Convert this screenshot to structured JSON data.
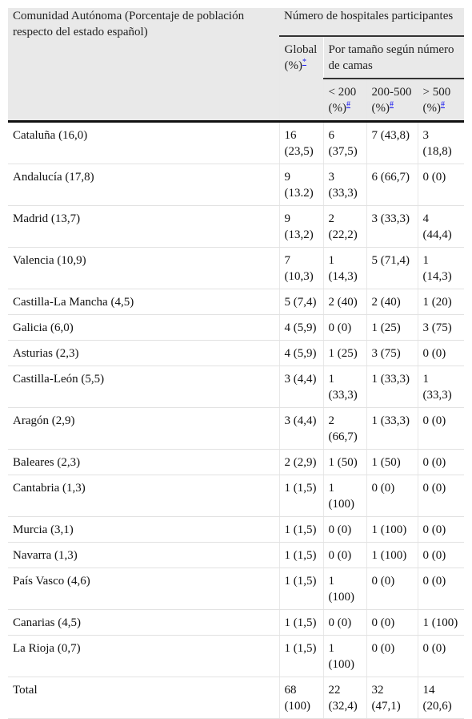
{
  "table": {
    "header": {
      "region": "Comunidad Autónoma (Porcentaje de población respecto del estado español)",
      "group": "Número de hospitales participantes",
      "global": {
        "label": "Global (%)",
        "note": "*"
      },
      "size_group": "Por tamaño según número de camas",
      "sizes": [
        {
          "label": "< 200 (%)",
          "note": "#"
        },
        {
          "label": "200-500 (%)",
          "note": "#"
        },
        {
          "label": "> 500 (%)",
          "note": "#"
        }
      ]
    },
    "rows": [
      [
        "Cataluña (16,0)",
        "16 (23,5)",
        "6 (37,5)",
        "7 (43,8)",
        "3 (18,8)"
      ],
      [
        "Andalucía (17,8)",
        "9 (13.2)",
        "3 (33,3)",
        "6 (66,7)",
        "0 (0)"
      ],
      [
        "Madrid (13,7)",
        "9 (13,2)",
        "2 (22,2)",
        "3 (33,3)",
        "4 (44,4)"
      ],
      [
        "Valencia (10,9)",
        "7 (10,3)",
        "1 (14,3)",
        "5 (71,4)",
        "1 (14,3)"
      ],
      [
        "Castilla-La Mancha (4,5)",
        "5 (7,4)",
        "2 (40)",
        "2 (40)",
        "1 (20)"
      ],
      [
        "Galicia (6,0)",
        "4 (5,9)",
        "0 (0)",
        "1 (25)",
        "3 (75)"
      ],
      [
        "Asturias (2,3)",
        "4 (5,9)",
        "1 (25)",
        "3 (75)",
        "0 (0)"
      ],
      [
        "Castilla-León (5,5)",
        "3 (4,4)",
        "1 (33,3)",
        "1 (33,3)",
        "1 (33,3)"
      ],
      [
        "Aragón (2,9)",
        "3 (4,4)",
        "2 (66,7)",
        "1 (33,3)",
        "0 (0)"
      ],
      [
        "Baleares (2,3)",
        "2 (2,9)",
        "1 (50)",
        "1 (50)",
        "0 (0)"
      ],
      [
        "Cantabria (1,3)",
        "1 (1,5)",
        "1 (100)",
        "0 (0)",
        "0 (0)"
      ],
      [
        "Murcia (3,1)",
        "1 (1,5)",
        "0 (0)",
        "1 (100)",
        "0 (0)"
      ],
      [
        "Navarra (1,3)",
        "1 (1,5)",
        "0 (0)",
        "1 (100)",
        "0 (0)"
      ],
      [
        "País Vasco (4,6)",
        "1 (1,5)",
        "1 (100)",
        "0 (0)",
        "0 (0)"
      ],
      [
        "Canarias (4,5)",
        "1 (1,5)",
        "0 (0)",
        "0 (0)",
        "1 (100)"
      ],
      [
        "La Rioja (0,7)",
        "1 (1,5)",
        "1 (100)",
        "0 (0)",
        "0 (0)"
      ],
      [
        "Total",
        "68 (100)",
        "22 (32,4)",
        "32 (47,1)",
        "14 (20,6)"
      ]
    ]
  }
}
